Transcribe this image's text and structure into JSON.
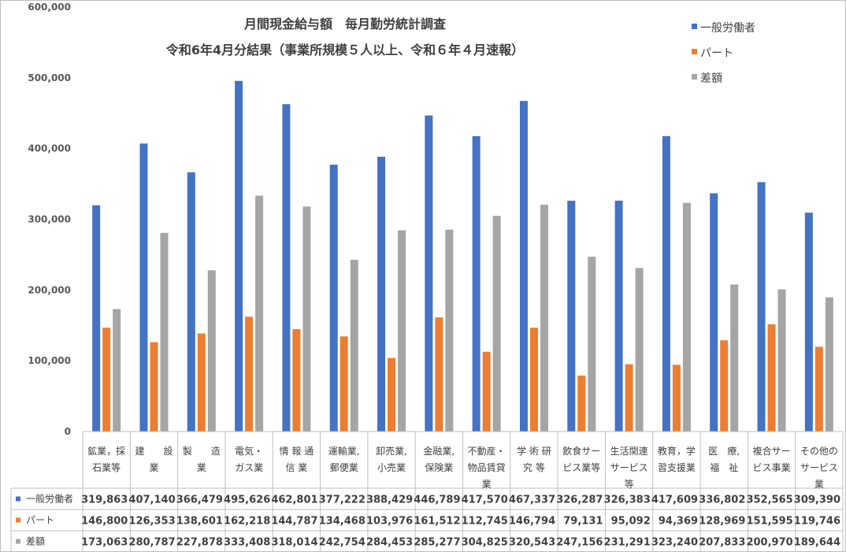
{
  "chart_data": {
    "type": "bar",
    "title": [
      "月間現金給与額　毎月勤労統計調査",
      "令和6年4月分結果（事業所規模５人以上、令和６年４月速報）"
    ],
    "categories": [
      [
        "鉱業，採",
        "石業等"
      ],
      [
        "建　　設",
        "業"
      ],
      [
        "製　　造",
        "業"
      ],
      [
        "電気・",
        "ガス業"
      ],
      [
        "情 報 通",
        "信 業"
      ],
      [
        "運輸業,",
        "郵便業"
      ],
      [
        "卸売業,",
        "小売業"
      ],
      [
        "金融業,",
        "保険業"
      ],
      [
        "不動産・",
        "物品賃貸",
        "業"
      ],
      [
        "学 術 研",
        "究 等"
      ],
      [
        "飲食サー",
        "ビス業等"
      ],
      [
        "生活関連",
        "サービス",
        "等"
      ],
      [
        "教育，学",
        "習支援業"
      ],
      [
        "医　療,",
        "福　祉"
      ],
      [
        "複合サー",
        "ビス事業"
      ],
      [
        "その他の",
        "サービス",
        "業"
      ]
    ],
    "series": [
      {
        "name": "一般労働者",
        "color": "#4472C4",
        "values": [
          319863,
          407140,
          366479,
          495626,
          462801,
          377222,
          388429,
          446789,
          417570,
          467337,
          326287,
          326383,
          417609,
          336802,
          352565,
          309390
        ]
      },
      {
        "name": "パート",
        "color": "#ED7D31",
        "values": [
          146800,
          126353,
          138601,
          162218,
          144787,
          134468,
          103976,
          161512,
          112745,
          146794,
          79131,
          95092,
          94369,
          128969,
          151595,
          119746
        ]
      },
      {
        "name": "差額",
        "color": "#A5A5A5",
        "values": [
          173063,
          280787,
          227878,
          333408,
          318014,
          242754,
          284453,
          285277,
          304825,
          320543,
          247156,
          231291,
          323240,
          207833,
          200970,
          189644
        ]
      }
    ],
    "ylim": [
      0,
      600000
    ],
    "yticks": [
      "0",
      "100,000",
      "200,000",
      "300,000",
      "400,000",
      "500,000",
      "600,000"
    ],
    "table_rows": [
      [
        "319,863",
        "407,140",
        "366,479",
        "495,626",
        "462,801",
        "377,222",
        "388,429",
        "446,789",
        "417,570",
        "467,337",
        "326,287",
        "326,383",
        "417,609",
        "336,802",
        "352,565",
        "309,390"
      ],
      [
        "146,800",
        "126,353",
        "138,601",
        "162,218",
        "144,787",
        "134,468",
        "103,976",
        "161,512",
        "112,745",
        "146,794",
        "79,131",
        "95,092",
        "94,369",
        "128,969",
        "151,595",
        "119,746"
      ],
      [
        "173,063",
        "280,787",
        "227,878",
        "333,408",
        "318,014",
        "242,754",
        "284,453",
        "285,277",
        "304,825",
        "320,543",
        "247,156",
        "231,291",
        "323,240",
        "207,833",
        "200,970",
        "189,644"
      ]
    ],
    "legend": "top-right",
    "grid": false
  }
}
